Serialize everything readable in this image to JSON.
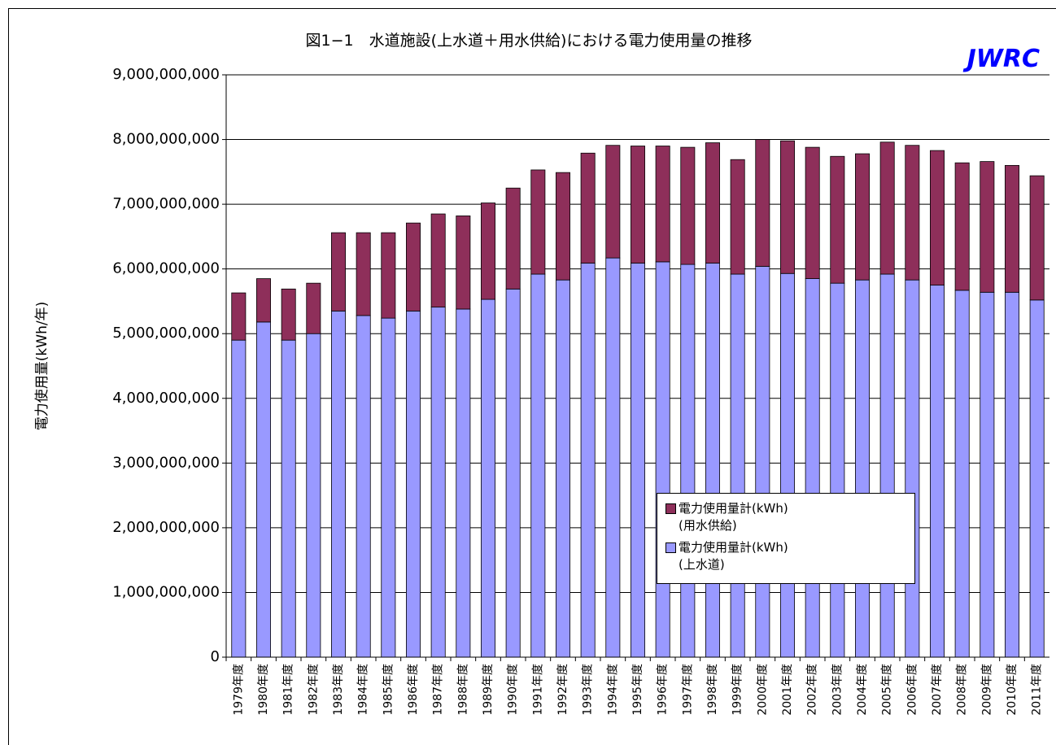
{
  "chart_data": {
    "type": "stacked-bar",
    "title": "図1−1　水道施設(上水道＋用水供給)における電力使用量の推移",
    "logo": "JWRC",
    "y_label": "電力使用量(kWh/年)",
    "categories": [
      "1979年度",
      "1980年度",
      "1981年度",
      "1982年度",
      "1983年度",
      "1984年度",
      "1985年度",
      "1986年度",
      "1987年度",
      "1988年度",
      "1989年度",
      "1990年度",
      "1991年度",
      "1992年度",
      "1993年度",
      "1994年度",
      "1995年度",
      "1996年度",
      "1997年度",
      "1998年度",
      "1999年度",
      "2000年度",
      "2001年度",
      "2002年度",
      "2003年度",
      "2004年度",
      "2005年度",
      "2006年度",
      "2007年度",
      "2008年度",
      "2009年度",
      "2010年度",
      "2011年度"
    ],
    "series": [
      {
        "name": "電力使用量計(kWh)\n(上水道)",
        "color": "#9999ff",
        "values": [
          4900000000,
          5180000000,
          4900000000,
          5000000000,
          5350000000,
          5280000000,
          5240000000,
          5350000000,
          5410000000,
          5380000000,
          5530000000,
          5690000000,
          5920000000,
          5830000000,
          6090000000,
          6170000000,
          6090000000,
          6110000000,
          6070000000,
          6090000000,
          5920000000,
          6040000000,
          5930000000,
          5850000000,
          5780000000,
          5830000000,
          5920000000,
          5830000000,
          5750000000,
          5670000000,
          5640000000,
          5640000000,
          5520000000
        ]
      },
      {
        "name": "電力使用量計(kWh)\n(用水供給)",
        "color": "#8e2f5a",
        "values": [
          730000000,
          670000000,
          790000000,
          780000000,
          1210000000,
          1280000000,
          1320000000,
          1360000000,
          1440000000,
          1440000000,
          1490000000,
          1560000000,
          1610000000,
          1660000000,
          1700000000,
          1740000000,
          1810000000,
          1790000000,
          1810000000,
          1860000000,
          1770000000,
          1960000000,
          2050000000,
          2030000000,
          1960000000,
          1950000000,
          2040000000,
          2080000000,
          2080000000,
          1970000000,
          2020000000,
          1960000000,
          1920000000
        ]
      }
    ],
    "ylim": [
      0,
      9000000000
    ],
    "yticks": [
      0,
      {
        "value": 1000000000,
        "label": "1,000,000,000"
      },
      {
        "value": 2000000000,
        "label": "2,000,000,000"
      },
      {
        "value": 3000000000,
        "label": "3,000,000,000"
      },
      {
        "value": 4000000000,
        "label": "4,000,000,000"
      },
      {
        "value": 5000000000,
        "label": "5,000,000,000"
      },
      {
        "value": 6000000000,
        "label": "6,000,000,000"
      },
      {
        "value": 7000000000,
        "label": "7,000,000,000"
      },
      {
        "value": 8000000000,
        "label": "8,000,000,000"
      },
      {
        "value": 9000000000,
        "label": "9,000,000,000"
      }
    ],
    "grid": true
  }
}
